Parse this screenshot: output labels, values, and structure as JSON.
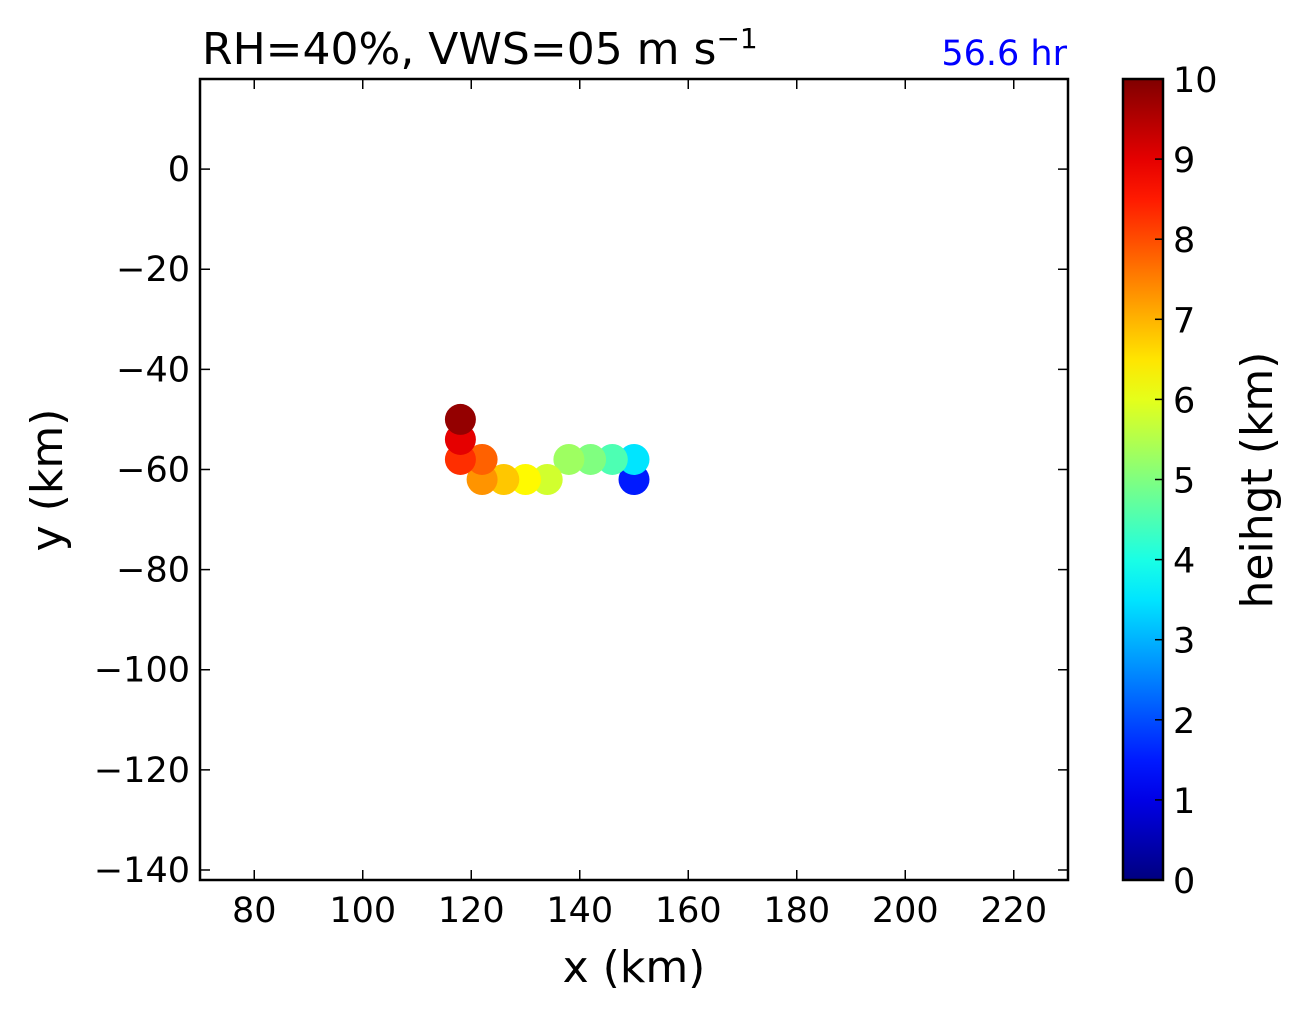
{
  "chart_data": {
    "type": "scatter",
    "title": "RH=40%, VWS=05 m s",
    "title_superscript": "−1",
    "annotation": "56.6 hr",
    "annotation_color": "#0000ff",
    "xlabel": "x (km)",
    "ylabel": "y (km)",
    "xlim": [
      70,
      230
    ],
    "ylim": [
      -142,
      18
    ],
    "xticks": [
      80,
      100,
      120,
      140,
      160,
      180,
      200,
      220
    ],
    "yticks": [
      0,
      -20,
      -40,
      -60,
      -80,
      -100,
      -120,
      -140
    ],
    "grid": false,
    "colorbar": {
      "label": "heihgt (km)",
      "colormap": "jet",
      "range": [
        0,
        10
      ],
      "ticks": [
        0,
        1,
        2,
        3,
        4,
        5,
        6,
        7,
        8,
        9,
        10
      ]
    },
    "points": [
      {
        "x": 150,
        "y": -62,
        "height": 1.5
      },
      {
        "x": 150,
        "y": -58,
        "height": 3.5
      },
      {
        "x": 146,
        "y": -58,
        "height": 4.5
      },
      {
        "x": 142,
        "y": -58,
        "height": 5.0
      },
      {
        "x": 138,
        "y": -58,
        "height": 5.3
      },
      {
        "x": 134,
        "y": -62,
        "height": 5.8
      },
      {
        "x": 130,
        "y": -62,
        "height": 6.3
      },
      {
        "x": 126,
        "y": -62,
        "height": 6.8
      },
      {
        "x": 122,
        "y": -62,
        "height": 7.3
      },
      {
        "x": 122,
        "y": -58,
        "height": 7.8
      },
      {
        "x": 118,
        "y": -58,
        "height": 8.3
      },
      {
        "x": 118,
        "y": -54,
        "height": 9.0
      },
      {
        "x": 118,
        "y": -50,
        "height": 9.8
      }
    ]
  }
}
